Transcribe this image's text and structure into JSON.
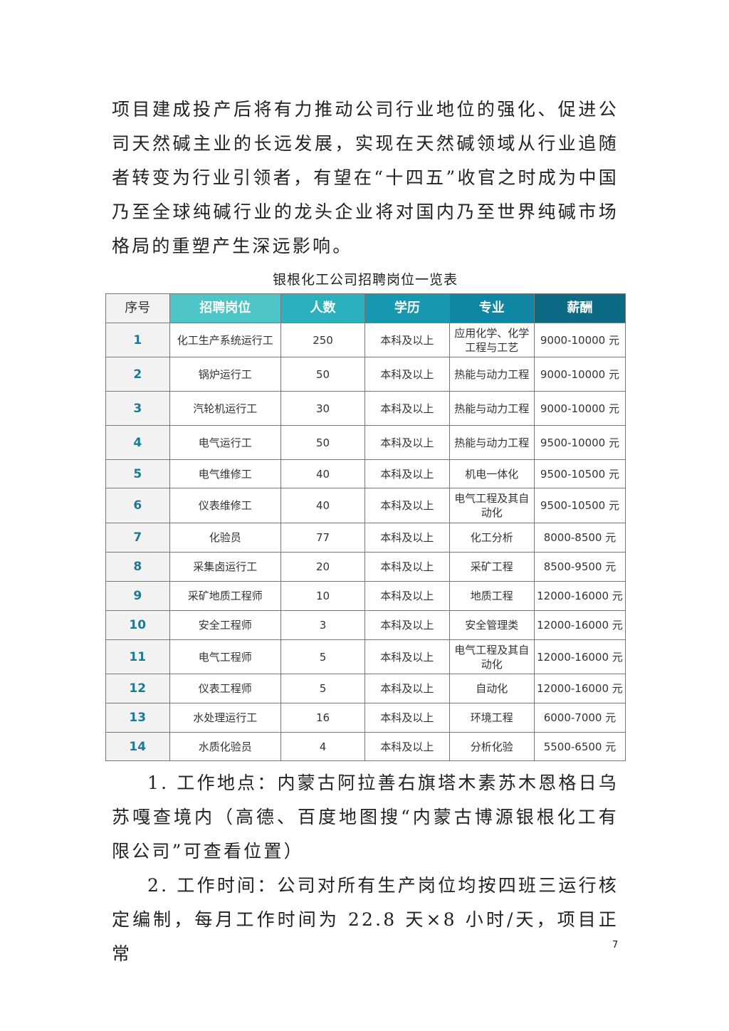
{
  "intro": [
    "项目建成投产后将有力推动公司行业地位的强化、促进公司天然碱主业的长远发展，实现在天然碱领域从行业追随者转变为行业引领者，有望在“十四五”收官之时成为中国乃至全球纯碱行业的龙头企业将对国内乃至世界纯碱市场格局的重塑产生深远影响。"
  ],
  "table": {
    "caption": "银根化工公司招聘岗位一览表",
    "headers": [
      "序号",
      "招聘岗位",
      "人数",
      "学历",
      "专业",
      "薪酬"
    ],
    "header_colors": [
      "#f2f2f2",
      "#4cc4c8",
      "#2bb0bd",
      "#1797b0",
      "#0f86a3",
      "#0c6a85"
    ],
    "rows": [
      [
        "1",
        "化工生产系统运行工",
        "250",
        "本科及以上",
        "应用化学、化学工程与工艺",
        "9000-10000 元"
      ],
      [
        "2",
        "锅炉运行工",
        "50",
        "本科及以上",
        "热能与动力工程",
        "9000-10000 元"
      ],
      [
        "3",
        "汽轮机运行工",
        "30",
        "本科及以上",
        "热能与动力工程",
        "9000-10000 元"
      ],
      [
        "4",
        "电气运行工",
        "50",
        "本科及以上",
        "热能与动力工程",
        "9500-10000 元"
      ],
      [
        "5",
        "电气维修工",
        "40",
        "本科及以上",
        "机电一体化",
        "9500-10500 元"
      ],
      [
        "6",
        "仪表维修工",
        "40",
        "本科及以上",
        "电气工程及其自动化",
        "9500-10500 元"
      ],
      [
        "7",
        "化验员",
        "77",
        "本科及以上",
        "化工分析",
        "8000-8500 元"
      ],
      [
        "8",
        "采集卤运行工",
        "20",
        "本科及以上",
        "采矿工程",
        "8500-9500 元"
      ],
      [
        "9",
        "采矿地质工程师",
        "10",
        "本科及以上",
        "地质工程",
        "12000-16000 元"
      ],
      [
        "10",
        "安全工程师",
        "3",
        "本科及以上",
        "安全管理类",
        "12000-16000 元"
      ],
      [
        "11",
        "电气工程师",
        "5",
        "本科及以上",
        "电气工程及其自动化",
        "12000-16000 元"
      ],
      [
        "12",
        "仪表工程师",
        "5",
        "本科及以上",
        "自动化",
        "12000-16000 元"
      ],
      [
        "13",
        "水处理运行工",
        "16",
        "本科及以上",
        "环境工程",
        "6000-7000 元"
      ],
      [
        "14",
        "水质化验员",
        "4",
        "本科及以上",
        "分析化验",
        "5500-6500 元"
      ]
    ]
  },
  "after": [
    "1. 工作地点：内蒙古阿拉善右旗塔木素苏木恩格日乌苏嘎查境内（高德、百度地图搜“内蒙古博源银根化工有限公司”可查看位置）",
    "2. 工作时间：公司对所有生产岗位均按四班三运行核定编制，每月工作时间为 22.8 天×8 小时/天，项目正常"
  ],
  "page_number": "7"
}
